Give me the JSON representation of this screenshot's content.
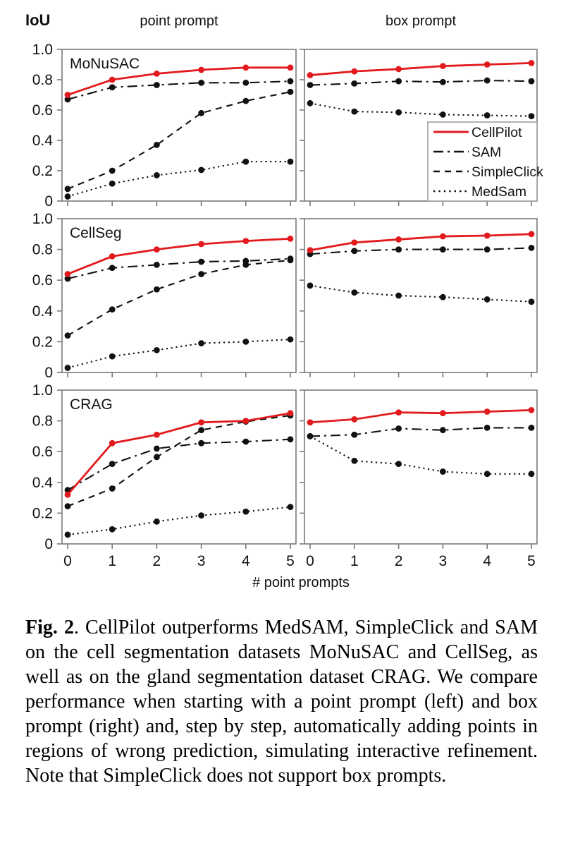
{
  "figure": {
    "y_axis_title": "IoU",
    "column_titles": [
      "point prompt",
      "box prompt"
    ],
    "x_axis_title": "# point prompts"
  },
  "legend": {
    "position": "bottom-right of top-right panel",
    "entries": [
      {
        "label": "CellPilot",
        "style": "solid",
        "color": "#e21a1d"
      },
      {
        "label": "SAM",
        "style": "dash-dot",
        "color": "#111111"
      },
      {
        "label": "SimpleClick",
        "style": "dashed",
        "color": "#111111"
      },
      {
        "label": "MedSam",
        "style": "dotted",
        "color": "#111111"
      }
    ]
  },
  "chart_data": [
    {
      "type": "line",
      "dataset": "MoNuSAC",
      "prompt_type": "point",
      "panel_label": "MoNuSAC",
      "x": [
        0,
        1,
        2,
        3,
        4,
        5
      ],
      "xtick_labels": [
        "0",
        "1",
        "2",
        "3",
        "4",
        "5"
      ],
      "ytick_labels": [
        "0",
        "0.2",
        "0.4",
        "0.6",
        "0.8",
        "1.0"
      ],
      "xlim": [
        0,
        5
      ],
      "ylim": [
        0,
        1
      ],
      "grid": false,
      "show_y_tick_labels": true,
      "show_x_tick_labels": false,
      "show_legend": false,
      "series": [
        {
          "name": "CellPilot",
          "values": [
            0.7,
            0.8,
            0.84,
            0.865,
            0.88,
            0.88
          ]
        },
        {
          "name": "SAM",
          "values": [
            0.67,
            0.75,
            0.765,
            0.78,
            0.78,
            0.79
          ]
        },
        {
          "name": "SimpleClick",
          "values": [
            0.08,
            0.2,
            0.37,
            0.58,
            0.66,
            0.72
          ]
        },
        {
          "name": "MedSam",
          "values": [
            0.03,
            0.115,
            0.17,
            0.205,
            0.26,
            0.26
          ]
        }
      ]
    },
    {
      "type": "line",
      "dataset": "MoNuSAC",
      "prompt_type": "box",
      "panel_label": "",
      "x": [
        0,
        1,
        2,
        3,
        4,
        5
      ],
      "xtick_labels": [
        "0",
        "1",
        "2",
        "3",
        "4",
        "5"
      ],
      "ytick_labels": [
        "0",
        "0.2",
        "0.4",
        "0.6",
        "0.8",
        "1.0"
      ],
      "xlim": [
        0,
        5
      ],
      "ylim": [
        0,
        1
      ],
      "grid": false,
      "show_y_tick_labels": false,
      "show_x_tick_labels": false,
      "show_legend": true,
      "series": [
        {
          "name": "CellPilot",
          "values": [
            0.83,
            0.855,
            0.87,
            0.89,
            0.9,
            0.91
          ]
        },
        {
          "name": "SAM",
          "values": [
            0.765,
            0.775,
            0.79,
            0.785,
            0.795,
            0.79
          ]
        },
        {
          "name": "MedSam",
          "values": [
            0.645,
            0.59,
            0.585,
            0.57,
            0.565,
            0.56
          ]
        }
      ]
    },
    {
      "type": "line",
      "dataset": "CellSeg",
      "prompt_type": "point",
      "panel_label": "CellSeg",
      "x": [
        0,
        1,
        2,
        3,
        4,
        5
      ],
      "xtick_labels": [
        "0",
        "1",
        "2",
        "3",
        "4",
        "5"
      ],
      "ytick_labels": [
        "0",
        "0.2",
        "0.4",
        "0.6",
        "0.8",
        "1.0"
      ],
      "xlim": [
        0,
        5
      ],
      "ylim": [
        0,
        1
      ],
      "grid": false,
      "show_y_tick_labels": true,
      "show_x_tick_labels": false,
      "show_legend": false,
      "series": [
        {
          "name": "CellPilot",
          "values": [
            0.64,
            0.755,
            0.8,
            0.835,
            0.855,
            0.87
          ]
        },
        {
          "name": "SAM",
          "values": [
            0.61,
            0.68,
            0.7,
            0.72,
            0.725,
            0.74
          ]
        },
        {
          "name": "SimpleClick",
          "values": [
            0.24,
            0.41,
            0.54,
            0.64,
            0.7,
            0.73
          ]
        },
        {
          "name": "MedSam",
          "values": [
            0.03,
            0.105,
            0.145,
            0.19,
            0.2,
            0.215
          ]
        }
      ]
    },
    {
      "type": "line",
      "dataset": "CellSeg",
      "prompt_type": "box",
      "panel_label": "",
      "x": [
        0,
        1,
        2,
        3,
        4,
        5
      ],
      "xtick_labels": [
        "0",
        "1",
        "2",
        "3",
        "4",
        "5"
      ],
      "ytick_labels": [
        "0",
        "0.2",
        "0.4",
        "0.6",
        "0.8",
        "1.0"
      ],
      "xlim": [
        0,
        5
      ],
      "ylim": [
        0,
        1
      ],
      "grid": false,
      "show_y_tick_labels": false,
      "show_x_tick_labels": false,
      "show_legend": false,
      "series": [
        {
          "name": "CellPilot",
          "values": [
            0.795,
            0.845,
            0.865,
            0.885,
            0.89,
            0.9
          ]
        },
        {
          "name": "SAM",
          "values": [
            0.77,
            0.79,
            0.8,
            0.8,
            0.8,
            0.81
          ]
        },
        {
          "name": "MedSam",
          "values": [
            0.565,
            0.52,
            0.5,
            0.49,
            0.475,
            0.46
          ]
        }
      ]
    },
    {
      "type": "line",
      "dataset": "CRAG",
      "prompt_type": "point",
      "panel_label": "CRAG",
      "x": [
        0,
        1,
        2,
        3,
        4,
        5
      ],
      "xtick_labels": [
        "0",
        "1",
        "2",
        "3",
        "4",
        "5"
      ],
      "ytick_labels": [
        "0",
        "0.2",
        "0.4",
        "0.6",
        "0.8",
        "1.0"
      ],
      "xlim": [
        0,
        5
      ],
      "ylim": [
        0,
        1
      ],
      "grid": false,
      "show_y_tick_labels": true,
      "show_x_tick_labels": true,
      "show_legend": false,
      "series": [
        {
          "name": "CellPilot",
          "values": [
            0.32,
            0.655,
            0.71,
            0.79,
            0.8,
            0.85
          ]
        },
        {
          "name": "SAM",
          "values": [
            0.35,
            0.52,
            0.62,
            0.655,
            0.665,
            0.68
          ]
        },
        {
          "name": "SimpleClick",
          "values": [
            0.245,
            0.36,
            0.565,
            0.74,
            0.795,
            0.835
          ]
        },
        {
          "name": "MedSam",
          "values": [
            0.06,
            0.095,
            0.145,
            0.185,
            0.21,
            0.24
          ]
        }
      ]
    },
    {
      "type": "line",
      "dataset": "CRAG",
      "prompt_type": "box",
      "panel_label": "",
      "x": [
        0,
        1,
        2,
        3,
        4,
        5
      ],
      "xtick_labels": [
        "0",
        "1",
        "2",
        "3",
        "4",
        "5"
      ],
      "ytick_labels": [
        "0",
        "0.2",
        "0.4",
        "0.6",
        "0.8",
        "1.0"
      ],
      "xlim": [
        0,
        5
      ],
      "ylim": [
        0,
        1
      ],
      "grid": false,
      "show_y_tick_labels": false,
      "show_x_tick_labels": true,
      "show_legend": false,
      "series": [
        {
          "name": "CellPilot",
          "values": [
            0.79,
            0.81,
            0.855,
            0.85,
            0.86,
            0.87
          ]
        },
        {
          "name": "SAM",
          "values": [
            0.7,
            0.71,
            0.75,
            0.74,
            0.755,
            0.755
          ]
        },
        {
          "name": "MedSam",
          "values": [
            0.7,
            0.54,
            0.52,
            0.47,
            0.455,
            0.455
          ]
        }
      ]
    }
  ],
  "caption": {
    "label": "Fig. 2",
    "separator": ".  ",
    "body": "CellPilot outperforms MedSAM, SimpleClick and SAM on the cell segmentation datasets MoNuSAC and CellSeg, as well as on the gland segmentation dataset CRAG. We compare performance when starting with a point prompt (left) and box prompt (right) and, step by step, automatically adding points in regions of wrong prediction, simulating interactive refinement. Note that SimpleClick does not support box prompts."
  }
}
